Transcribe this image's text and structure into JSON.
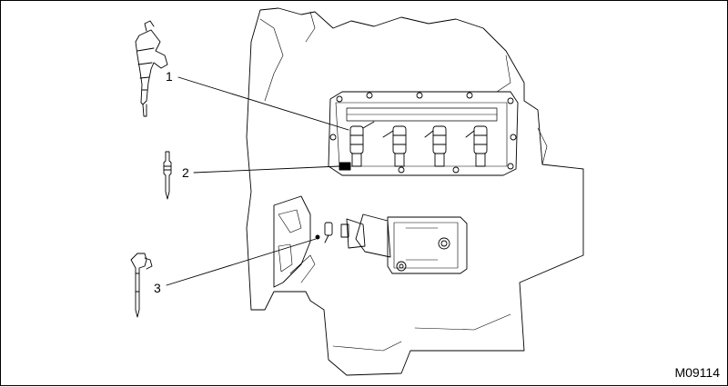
{
  "callouts": {
    "c1": "1",
    "c2": "2",
    "c3": "3"
  },
  "figure_id": "M09114",
  "colors": {
    "line": "#000000",
    "background": "#ffffff"
  }
}
